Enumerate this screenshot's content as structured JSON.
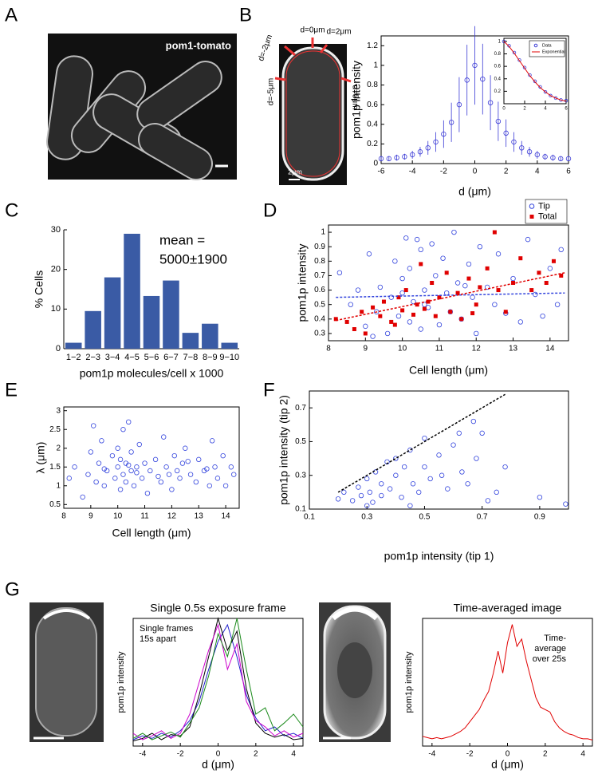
{
  "panels": {
    "letters": [
      "A",
      "B",
      "C",
      "D",
      "E",
      "F",
      "G"
    ]
  },
  "images": {
    "a_label": "pom1-tomato",
    "b_labels": [
      "d=-2μm",
      "d=0μm",
      "d=2μm",
      "d=-5μm",
      "d=5μm"
    ],
    "b_scale": "2μm"
  },
  "chart_data": [
    {
      "type": "line",
      "xlabel": "d (μm)",
      "ylabel": "pom1p intensity",
      "x": [
        -6,
        -5.5,
        -5,
        -4.5,
        -4,
        -3.5,
        -3,
        -2.5,
        -2,
        -1.5,
        -1,
        -0.5,
        0,
        0.5,
        1,
        1.5,
        2,
        2.5,
        3,
        3.5,
        4,
        4.5,
        5,
        5.5,
        6
      ],
      "series": [
        {
          "color": "#3b3bd6",
          "marker": "circle",
          "values": [
            0.05,
            0.05,
            0.06,
            0.07,
            0.09,
            0.12,
            0.16,
            0.22,
            0.3,
            0.42,
            0.6,
            0.85,
            1.0,
            0.86,
            0.62,
            0.43,
            0.31,
            0.22,
            0.16,
            0.12,
            0.09,
            0.07,
            0.06,
            0.05,
            0.05
          ],
          "errors": [
            0.02,
            0.02,
            0.03,
            0.03,
            0.04,
            0.05,
            0.07,
            0.1,
            0.14,
            0.2,
            0.28,
            0.36,
            0.4,
            0.36,
            0.28,
            0.2,
            0.14,
            0.1,
            0.07,
            0.05,
            0.04,
            0.03,
            0.03,
            0.02,
            0.02
          ]
        }
      ],
      "xlim": [
        -6,
        6
      ],
      "xticks": [
        -6,
        -4,
        -2,
        0,
        2,
        4,
        6
      ],
      "ylim": [
        0,
        1.3
      ],
      "yticks": [
        0,
        0.2,
        0.4,
        0.6,
        0.8,
        1,
        1.2
      ]
    },
    {
      "type": "line",
      "legend": "upper right",
      "x": [
        0,
        0.5,
        1,
        1.5,
        2,
        2.5,
        3,
        3.5,
        4,
        4.5,
        5,
        5.5,
        6
      ],
      "series": [
        {
          "name": "Data",
          "color": "#3b3bd6",
          "marker": "circle",
          "values": [
            1.0,
            0.93,
            0.82,
            0.7,
            0.58,
            0.46,
            0.36,
            0.27,
            0.19,
            0.13,
            0.09,
            0.06,
            0.05
          ]
        },
        {
          "name": "Exponential",
          "color": "#e00000",
          "values": [
            1.0,
            0.92,
            0.81,
            0.69,
            0.57,
            0.45,
            0.35,
            0.26,
            0.19,
            0.13,
            0.09,
            0.06,
            0.04
          ]
        }
      ],
      "xlim": [
        0,
        6
      ],
      "xticks": [
        0,
        2,
        4,
        6
      ],
      "ylim": [
        0,
        1.05
      ],
      "yticks": [
        0.2,
        0.4,
        0.6,
        0.8,
        1
      ]
    },
    {
      "type": "bar",
      "xlabel": "pom1p molecules/cell x 1000",
      "ylabel": "% Cells",
      "color": "#3a5ba5",
      "categories": [
        "1−2",
        "2−3",
        "3−4",
        "4−5",
        "5−6",
        "6−7",
        "7−8",
        "8−9",
        "9−10"
      ],
      "values": [
        1.5,
        9.5,
        18,
        29,
        13.3,
        17.2,
        4,
        6.3,
        1.5
      ],
      "ylim": [
        0,
        30
      ],
      "yticks": [
        0,
        10,
        20,
        30
      ],
      "annotations": [
        "mean =",
        "5000±1900"
      ]
    },
    {
      "type": "scatter",
      "xlabel": "Cell length (μm)",
      "ylabel": "pom1p intensity",
      "legend": "above right",
      "series": [
        {
          "name": "Tip",
          "color": "#3344dd",
          "marker": "circle",
          "x": [
            8.3,
            8.6,
            8.8,
            9.0,
            9.1,
            9.3,
            9.4,
            9.6,
            9.7,
            9.8,
            9.9,
            10.0,
            10.1,
            10.2,
            10.2,
            10.3,
            10.4,
            10.5,
            10.5,
            10.6,
            10.7,
            10.8,
            10.9,
            11.0,
            11.1,
            11.2,
            11.3,
            11.4,
            11.5,
            11.6,
            11.8,
            11.9,
            12.0,
            12.1,
            12.3,
            12.5,
            12.6,
            12.8,
            13.0,
            13.2,
            13.4,
            13.6,
            13.8,
            14.0,
            14.2,
            14.3,
            9.2,
            10.0,
            10.6,
            11.7
          ],
          "values": [
            0.72,
            0.5,
            0.6,
            0.35,
            0.85,
            0.45,
            0.62,
            0.3,
            0.55,
            0.8,
            0.42,
            0.68,
            0.96,
            0.38,
            0.75,
            0.52,
            0.95,
            0.33,
            0.88,
            0.6,
            0.48,
            0.92,
            0.7,
            0.36,
            0.82,
            0.58,
            0.45,
            1.0,
            0.65,
            0.4,
            0.78,
            0.55,
            0.3,
            0.9,
            0.62,
            0.5,
            0.85,
            0.44,
            0.68,
            0.38,
            0.95,
            0.57,
            0.42,
            0.75,
            0.5,
            0.88,
            0.28,
            0.58,
            0.5,
            0.63
          ]
        },
        {
          "name": "Total",
          "color": "#e00000",
          "marker": "square",
          "x": [
            8.2,
            8.5,
            8.7,
            8.9,
            9.0,
            9.2,
            9.4,
            9.5,
            9.7,
            9.9,
            10.0,
            10.1,
            10.3,
            10.4,
            10.5,
            10.6,
            10.8,
            10.9,
            11.0,
            11.2,
            11.3,
            11.5,
            11.6,
            11.8,
            12.0,
            12.1,
            12.3,
            12.5,
            12.6,
            12.8,
            13.0,
            13.2,
            13.5,
            13.7,
            13.9,
            14.1,
            14.3,
            9.8,
            10.7,
            11.9
          ],
          "values": [
            0.4,
            0.38,
            0.33,
            0.45,
            0.3,
            0.48,
            0.42,
            0.52,
            0.38,
            0.55,
            0.46,
            0.6,
            0.43,
            0.5,
            0.78,
            0.47,
            0.65,
            0.42,
            0.55,
            0.72,
            0.45,
            0.58,
            0.4,
            0.68,
            0.5,
            0.62,
            0.75,
            1.0,
            0.6,
            0.45,
            0.65,
            0.82,
            0.6,
            0.72,
            0.65,
            0.8,
            0.7,
            0.36,
            0.52,
            0.44
          ]
        }
      ],
      "fit_lines": [
        {
          "color": "#3344dd",
          "x": [
            8.2,
            14.4
          ],
          "values": [
            0.55,
            0.58
          ]
        },
        {
          "color": "#e00000",
          "x": [
            8.2,
            14.4
          ],
          "values": [
            0.39,
            0.72
          ]
        }
      ],
      "xlim": [
        8,
        14.5
      ],
      "xticks": [
        8,
        9,
        10,
        11,
        12,
        13,
        14
      ],
      "ylim": [
        0.25,
        1.05
      ],
      "yticks": [
        0.3,
        0.4,
        0.5,
        0.6,
        0.7,
        0.8,
        0.9,
        1
      ]
    },
    {
      "type": "scatter",
      "xlabel": "Cell length (μm)",
      "ylabel": "λ (μm)",
      "series": [
        {
          "color": "#3344dd",
          "marker": "circle",
          "x": [
            8.2,
            8.4,
            8.7,
            8.9,
            9.0,
            9.1,
            9.2,
            9.3,
            9.4,
            9.5,
            9.6,
            9.8,
            9.9,
            10.0,
            10.0,
            10.1,
            10.1,
            10.2,
            10.2,
            10.3,
            10.3,
            10.4,
            10.5,
            10.5,
            10.6,
            10.7,
            10.8,
            10.9,
            11.0,
            11.1,
            11.2,
            11.4,
            11.6,
            11.7,
            11.8,
            11.9,
            12.0,
            12.1,
            12.2,
            12.3,
            12.4,
            12.5,
            12.7,
            12.9,
            13.0,
            13.2,
            13.4,
            13.5,
            13.6,
            13.7,
            13.9,
            14.0,
            14.2,
            14.3,
            9.5,
            10.4,
            10.7,
            11.5,
            12.6,
            13.3
          ],
          "values": [
            1.2,
            1.5,
            0.7,
            1.3,
            1.9,
            2.6,
            1.1,
            1.6,
            2.2,
            1.0,
            1.4,
            1.8,
            1.2,
            2.0,
            1.5,
            1.7,
            0.9,
            2.5,
            1.3,
            1.6,
            1.1,
            2.7,
            1.4,
            1.9,
            1.0,
            1.5,
            2.1,
            1.2,
            1.6,
            0.8,
            1.4,
            1.7,
            1.1,
            2.3,
            1.5,
            1.3,
            0.9,
            1.8,
            1.4,
            1.2,
            1.6,
            2.0,
            1.3,
            1.1,
            1.7,
            1.4,
            1.0,
            2.2,
            1.5,
            1.2,
            1.8,
            1.0,
            1.5,
            1.3,
            1.45,
            1.55,
            1.35,
            1.25,
            1.65,
            1.45
          ]
        }
      ],
      "xlim": [
        8,
        14.5
      ],
      "xticks": [
        8,
        9,
        10,
        11,
        12,
        13,
        14
      ],
      "ylim": [
        0.4,
        3.1
      ],
      "yticks": [
        0.5,
        1,
        1.5,
        2,
        2.5,
        3
      ]
    },
    {
      "type": "scatter",
      "xlabel": "pom1p intensity (tip 1)",
      "ylabel": "pom1p intensity (tip 2)",
      "series": [
        {
          "color": "#3344dd",
          "marker": "circle",
          "x": [
            0.2,
            0.22,
            0.25,
            0.27,
            0.28,
            0.3,
            0.31,
            0.32,
            0.33,
            0.35,
            0.35,
            0.37,
            0.38,
            0.4,
            0.4,
            0.42,
            0.43,
            0.45,
            0.46,
            0.48,
            0.5,
            0.5,
            0.52,
            0.55,
            0.56,
            0.58,
            0.6,
            0.62,
            0.63,
            0.65,
            0.67,
            0.68,
            0.7,
            0.72,
            0.75,
            0.78,
            0.9,
            0.99,
            0.3,
            0.45
          ],
          "values": [
            0.16,
            0.2,
            0.15,
            0.23,
            0.18,
            0.28,
            0.2,
            0.14,
            0.32,
            0.25,
            0.18,
            0.38,
            0.22,
            0.4,
            0.3,
            0.17,
            0.35,
            0.45,
            0.25,
            0.2,
            0.35,
            0.52,
            0.28,
            0.42,
            0.3,
            0.22,
            0.48,
            0.55,
            0.32,
            0.25,
            0.62,
            0.4,
            0.55,
            0.15,
            0.2,
            0.35,
            0.17,
            0.13,
            0.12,
            0.12
          ]
        }
      ],
      "fit_lines": [
        {
          "color": "#000000",
          "x": [
            0.2,
            0.78
          ],
          "values": [
            0.2,
            0.78
          ]
        }
      ],
      "xlim": [
        0.1,
        1
      ],
      "xticks": [
        0.1,
        0.3,
        0.5,
        0.7,
        0.9
      ],
      "ylim": [
        0.1,
        0.8
      ],
      "yticks": [
        0.1,
        0.3,
        0.5,
        0.7
      ]
    },
    {
      "type": "line",
      "title": "Single 0.5s exposure frame",
      "xlabel": "d (μm)",
      "ylabel": "pom1p intensity",
      "annotations": [
        "Single frames",
        "15s apart"
      ],
      "x": [
        -4.5,
        -4,
        -3.5,
        -3,
        -2.5,
        -2,
        -1.5,
        -1,
        -0.5,
        0,
        0.5,
        1,
        1.5,
        2,
        2.5,
        3,
        3.5,
        4,
        4.5
      ],
      "series": [
        {
          "color": "#2020cc",
          "values": [
            0.05,
            0.08,
            0.06,
            0.1,
            0.07,
            0.12,
            0.2,
            0.35,
            0.6,
            0.82,
            0.95,
            0.7,
            0.4,
            0.22,
            0.12,
            0.15,
            0.08,
            0.1,
            0.06
          ]
        },
        {
          "color": "#000000",
          "values": [
            0.04,
            0.06,
            0.1,
            0.05,
            0.09,
            0.08,
            0.15,
            0.4,
            0.7,
            1.0,
            0.75,
            0.9,
            0.45,
            0.18,
            0.1,
            0.07,
            0.09,
            0.05,
            0.06
          ]
        },
        {
          "color": "#cc00cc",
          "values": [
            0.1,
            0.05,
            0.08,
            0.12,
            0.06,
            0.1,
            0.25,
            0.5,
            0.75,
            0.95,
            0.6,
            0.8,
            0.35,
            0.2,
            0.15,
            0.08,
            0.12,
            0.07,
            0.1
          ]
        },
        {
          "color": "#1a8a1a",
          "values": [
            0.06,
            0.1,
            0.05,
            0.08,
            0.11,
            0.07,
            0.18,
            0.3,
            0.55,
            0.88,
            0.7,
            1.0,
            0.6,
            0.25,
            0.3,
            0.12,
            0.18,
            0.25,
            0.15
          ]
        }
      ],
      "xlim": [
        -4.5,
        4.5
      ],
      "xticks": [
        -4,
        -2,
        0,
        2,
        4
      ],
      "ylim": [
        0,
        1.0
      ]
    },
    {
      "type": "line",
      "title": "Time-averaged image",
      "xlabel": "d (μm)",
      "ylabel": "pom1p intensity",
      "annotations": [
        "Time-",
        "average",
        "over 25s"
      ],
      "x": [
        -4.5,
        -4.25,
        -4,
        -3.75,
        -3.5,
        -3.25,
        -3,
        -2.75,
        -2.5,
        -2.25,
        -2,
        -1.75,
        -1.5,
        -1.25,
        -1,
        -0.75,
        -0.5,
        -0.25,
        0,
        0.25,
        0.5,
        0.75,
        1,
        1.25,
        1.5,
        1.75,
        2,
        2.25,
        2.5,
        2.75,
        3,
        3.25,
        3.5,
        3.75,
        4,
        4.25,
        4.5
      ],
      "series": [
        {
          "color": "#e00000",
          "values": [
            0.08,
            0.07,
            0.06,
            0.07,
            0.06,
            0.07,
            0.08,
            0.1,
            0.12,
            0.15,
            0.2,
            0.25,
            0.3,
            0.38,
            0.45,
            0.6,
            0.78,
            0.6,
            0.85,
            1.0,
            0.82,
            0.88,
            0.7,
            0.55,
            0.4,
            0.32,
            0.3,
            0.28,
            0.2,
            0.15,
            0.12,
            0.1,
            0.09,
            0.07,
            0.06,
            0.06,
            0.05
          ]
        }
      ],
      "xlim": [
        -4.5,
        4.5
      ],
      "xticks": [
        -4,
        -2,
        0,
        2,
        4
      ],
      "ylim": [
        0,
        1.05
      ]
    }
  ]
}
